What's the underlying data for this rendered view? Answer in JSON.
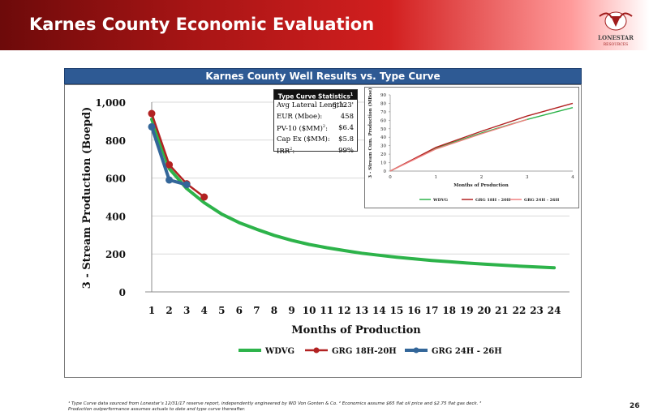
{
  "header": {
    "title": "Karnes County Economic Evaluation",
    "logo_text": [
      "LONESTAR",
      "RESOURCES"
    ]
  },
  "subtitle": "Karnes County Well Results vs. Type Curve",
  "stats": {
    "title": "Type Curve Statistics",
    "title_sup": "1",
    "rows": [
      {
        "label": "Avg Lateral Length:",
        "value": "6,123'"
      },
      {
        "label": "EUR (Mboe):",
        "value": "458"
      },
      {
        "label": "PV-10 ($MM)",
        "label_sup": "2",
        "label_end": ":",
        "value": "$6.4"
      },
      {
        "label": "Cap Ex ($MM):",
        "value": "$5.8"
      },
      {
        "label": "IRR",
        "label_sup": "2",
        "label_end": ":",
        "value": "99%"
      }
    ]
  },
  "footnote": "¹ Type Curve data sourced from Lonestar’s 12/31/17 reserve report, independently engineered by WD Von Gonten & Co. ² Economics assume $65 flat oil price and $2.75 flat gas deck. ³ Production outperformance assumes actuals to date and type curve thereafter.",
  "page_number": "26",
  "colors": {
    "wdvg": "#2db34a",
    "grg18": "#b22222",
    "grg24": "#336699"
  },
  "chart_data": [
    {
      "type": "line",
      "ylabel": "3 - Stream Production (Boepd)",
      "xlabel": "Months of Production",
      "ylim": [
        0,
        1000
      ],
      "yticks": [
        0,
        200,
        400,
        600,
        800,
        1000
      ],
      "ytick_labels": [
        "0",
        "200",
        "400",
        "600",
        "800",
        "1,000"
      ],
      "x": [
        1,
        2,
        3,
        4,
        5,
        6,
        7,
        8,
        9,
        10,
        11,
        12,
        13,
        14,
        15,
        16,
        17,
        18,
        19,
        20,
        21,
        22,
        23,
        24
      ],
      "legend": "bottom",
      "grid": true,
      "series": [
        {
          "name": "WDVG",
          "color": "#2db34a",
          "x": [
            1,
            2,
            3,
            4,
            5,
            6,
            7,
            8,
            9,
            10,
            11,
            12,
            13,
            14,
            15,
            16,
            17,
            18,
            19,
            20,
            21,
            22,
            23,
            24
          ],
          "values": [
            910,
            650,
            545,
            470,
            410,
            365,
            330,
            298,
            272,
            250,
            233,
            218,
            204,
            193,
            183,
            174,
            166,
            159,
            152,
            146,
            141,
            136,
            131,
            127
          ]
        },
        {
          "name": "GRG 18H-20H",
          "color": "#b22222",
          "x": [
            1,
            2,
            3,
            4
          ],
          "values": [
            940,
            670,
            570,
            500
          ]
        },
        {
          "name": "GRG 24H - 26H",
          "color": "#336699",
          "x": [
            1,
            2,
            3
          ],
          "values": [
            870,
            590,
            565
          ]
        }
      ]
    },
    {
      "type": "line",
      "ylabel": "3 - Stream Cum. Production (MBoe)",
      "xlabel": "Months of Production",
      "ylim": [
        0,
        90
      ],
      "xlim": [
        0,
        4
      ],
      "yticks": [
        0,
        10,
        20,
        30,
        40,
        50,
        60,
        70,
        80,
        90
      ],
      "xticks": [
        0,
        1,
        2,
        3,
        4
      ],
      "legend": "bottom",
      "series": [
        {
          "name": "WDVG",
          "color": "#2db34a",
          "x": [
            0,
            1,
            2,
            3,
            4
          ],
          "values": [
            0,
            27,
            45,
            61,
            75
          ]
        },
        {
          "name": "GRG 18H - 20H",
          "color": "#b22222",
          "x": [
            0,
            1,
            2,
            3,
            4
          ],
          "values": [
            0,
            28,
            47,
            65,
            80
          ]
        },
        {
          "name": "GRG 24H - 26H",
          "color": "#f08080",
          "x": [
            0,
            1,
            2,
            3
          ],
          "values": [
            0,
            26,
            44,
            61
          ]
        }
      ]
    }
  ]
}
